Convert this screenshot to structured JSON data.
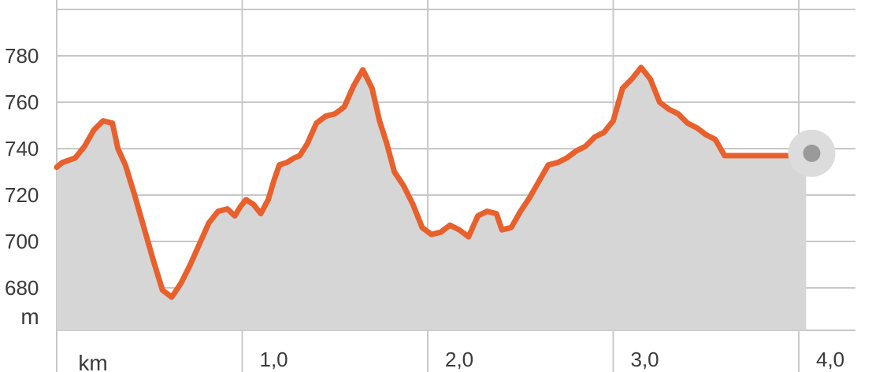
{
  "chart_data": {
    "type": "area",
    "title": "",
    "xlabel": "km",
    "ylabel": "m",
    "xlim": [
      0,
      4.08
    ],
    "ylim": [
      665,
      798
    ],
    "grid": true,
    "y_ticks": [
      {
        "value": 680,
        "label": "680"
      },
      {
        "value": 700,
        "label": "700"
      },
      {
        "value": 720,
        "label": "720"
      },
      {
        "value": 740,
        "label": "740"
      },
      {
        "value": 760,
        "label": "760"
      },
      {
        "value": 780,
        "label": "780"
      }
    ],
    "x_ticks": [
      {
        "value": 1.0,
        "label": "1,0"
      },
      {
        "value": 2.0,
        "label": "2,0"
      },
      {
        "value": 3.0,
        "label": "3,0"
      },
      {
        "value": 4.0,
        "label": "4,0"
      }
    ],
    "series": [
      {
        "x": [
          0.0,
          0.03,
          0.1,
          0.15,
          0.2,
          0.25,
          0.3,
          0.33,
          0.37,
          0.42,
          0.47,
          0.52,
          0.57,
          0.62,
          0.67,
          0.72,
          0.77,
          0.82,
          0.87,
          0.92,
          0.96,
          0.99,
          1.02,
          1.06,
          1.1,
          1.14,
          1.17,
          1.2,
          1.24,
          1.28,
          1.31,
          1.35,
          1.4,
          1.45,
          1.5,
          1.55,
          1.6,
          1.65,
          1.7,
          1.74,
          1.78,
          1.82,
          1.87,
          1.92,
          1.97,
          2.02,
          2.07,
          2.12,
          2.17,
          2.22,
          2.27,
          2.32,
          2.37,
          2.4,
          2.45,
          2.5,
          2.55,
          2.6,
          2.65,
          2.7,
          2.75,
          2.8,
          2.85,
          2.9,
          2.95,
          3.0,
          3.05,
          3.1,
          3.15,
          3.2,
          3.25,
          3.3,
          3.35,
          3.4,
          3.45,
          3.5,
          3.55,
          3.6,
          3.65,
          3.7,
          3.75,
          3.8,
          3.85,
          3.9,
          3.95,
          4.0,
          4.04
        ],
        "y": [
          732,
          734,
          736,
          741,
          748,
          752,
          751,
          740,
          733,
          720,
          706,
          692,
          679,
          676,
          682,
          690,
          699,
          708,
          713,
          714,
          711,
          715,
          718,
          716,
          712,
          718,
          726,
          733,
          734,
          736,
          737,
          742,
          751,
          754,
          755,
          758,
          767,
          774,
          766,
          752,
          742,
          730,
          724,
          716,
          706,
          703,
          704,
          707,
          705,
          702,
          711,
          713,
          712,
          705,
          706,
          713,
          719,
          726,
          733,
          734,
          736,
          739,
          741,
          745,
          747,
          752,
          766,
          770,
          775,
          770,
          760,
          757,
          755,
          751,
          749,
          746,
          744,
          737,
          737,
          737,
          737,
          737,
          737,
          737,
          737,
          737,
          737
        ]
      }
    ],
    "colors": {
      "line": "#e8602c",
      "area": "#d6d6d6",
      "grid": "#c8c8c8",
      "axis_text": "#3a3a3a",
      "cursor_outer": "#dcdcdc",
      "cursor_inner": "#9a9a9a"
    },
    "cursor": {
      "x": 4.07,
      "y": 738
    }
  }
}
